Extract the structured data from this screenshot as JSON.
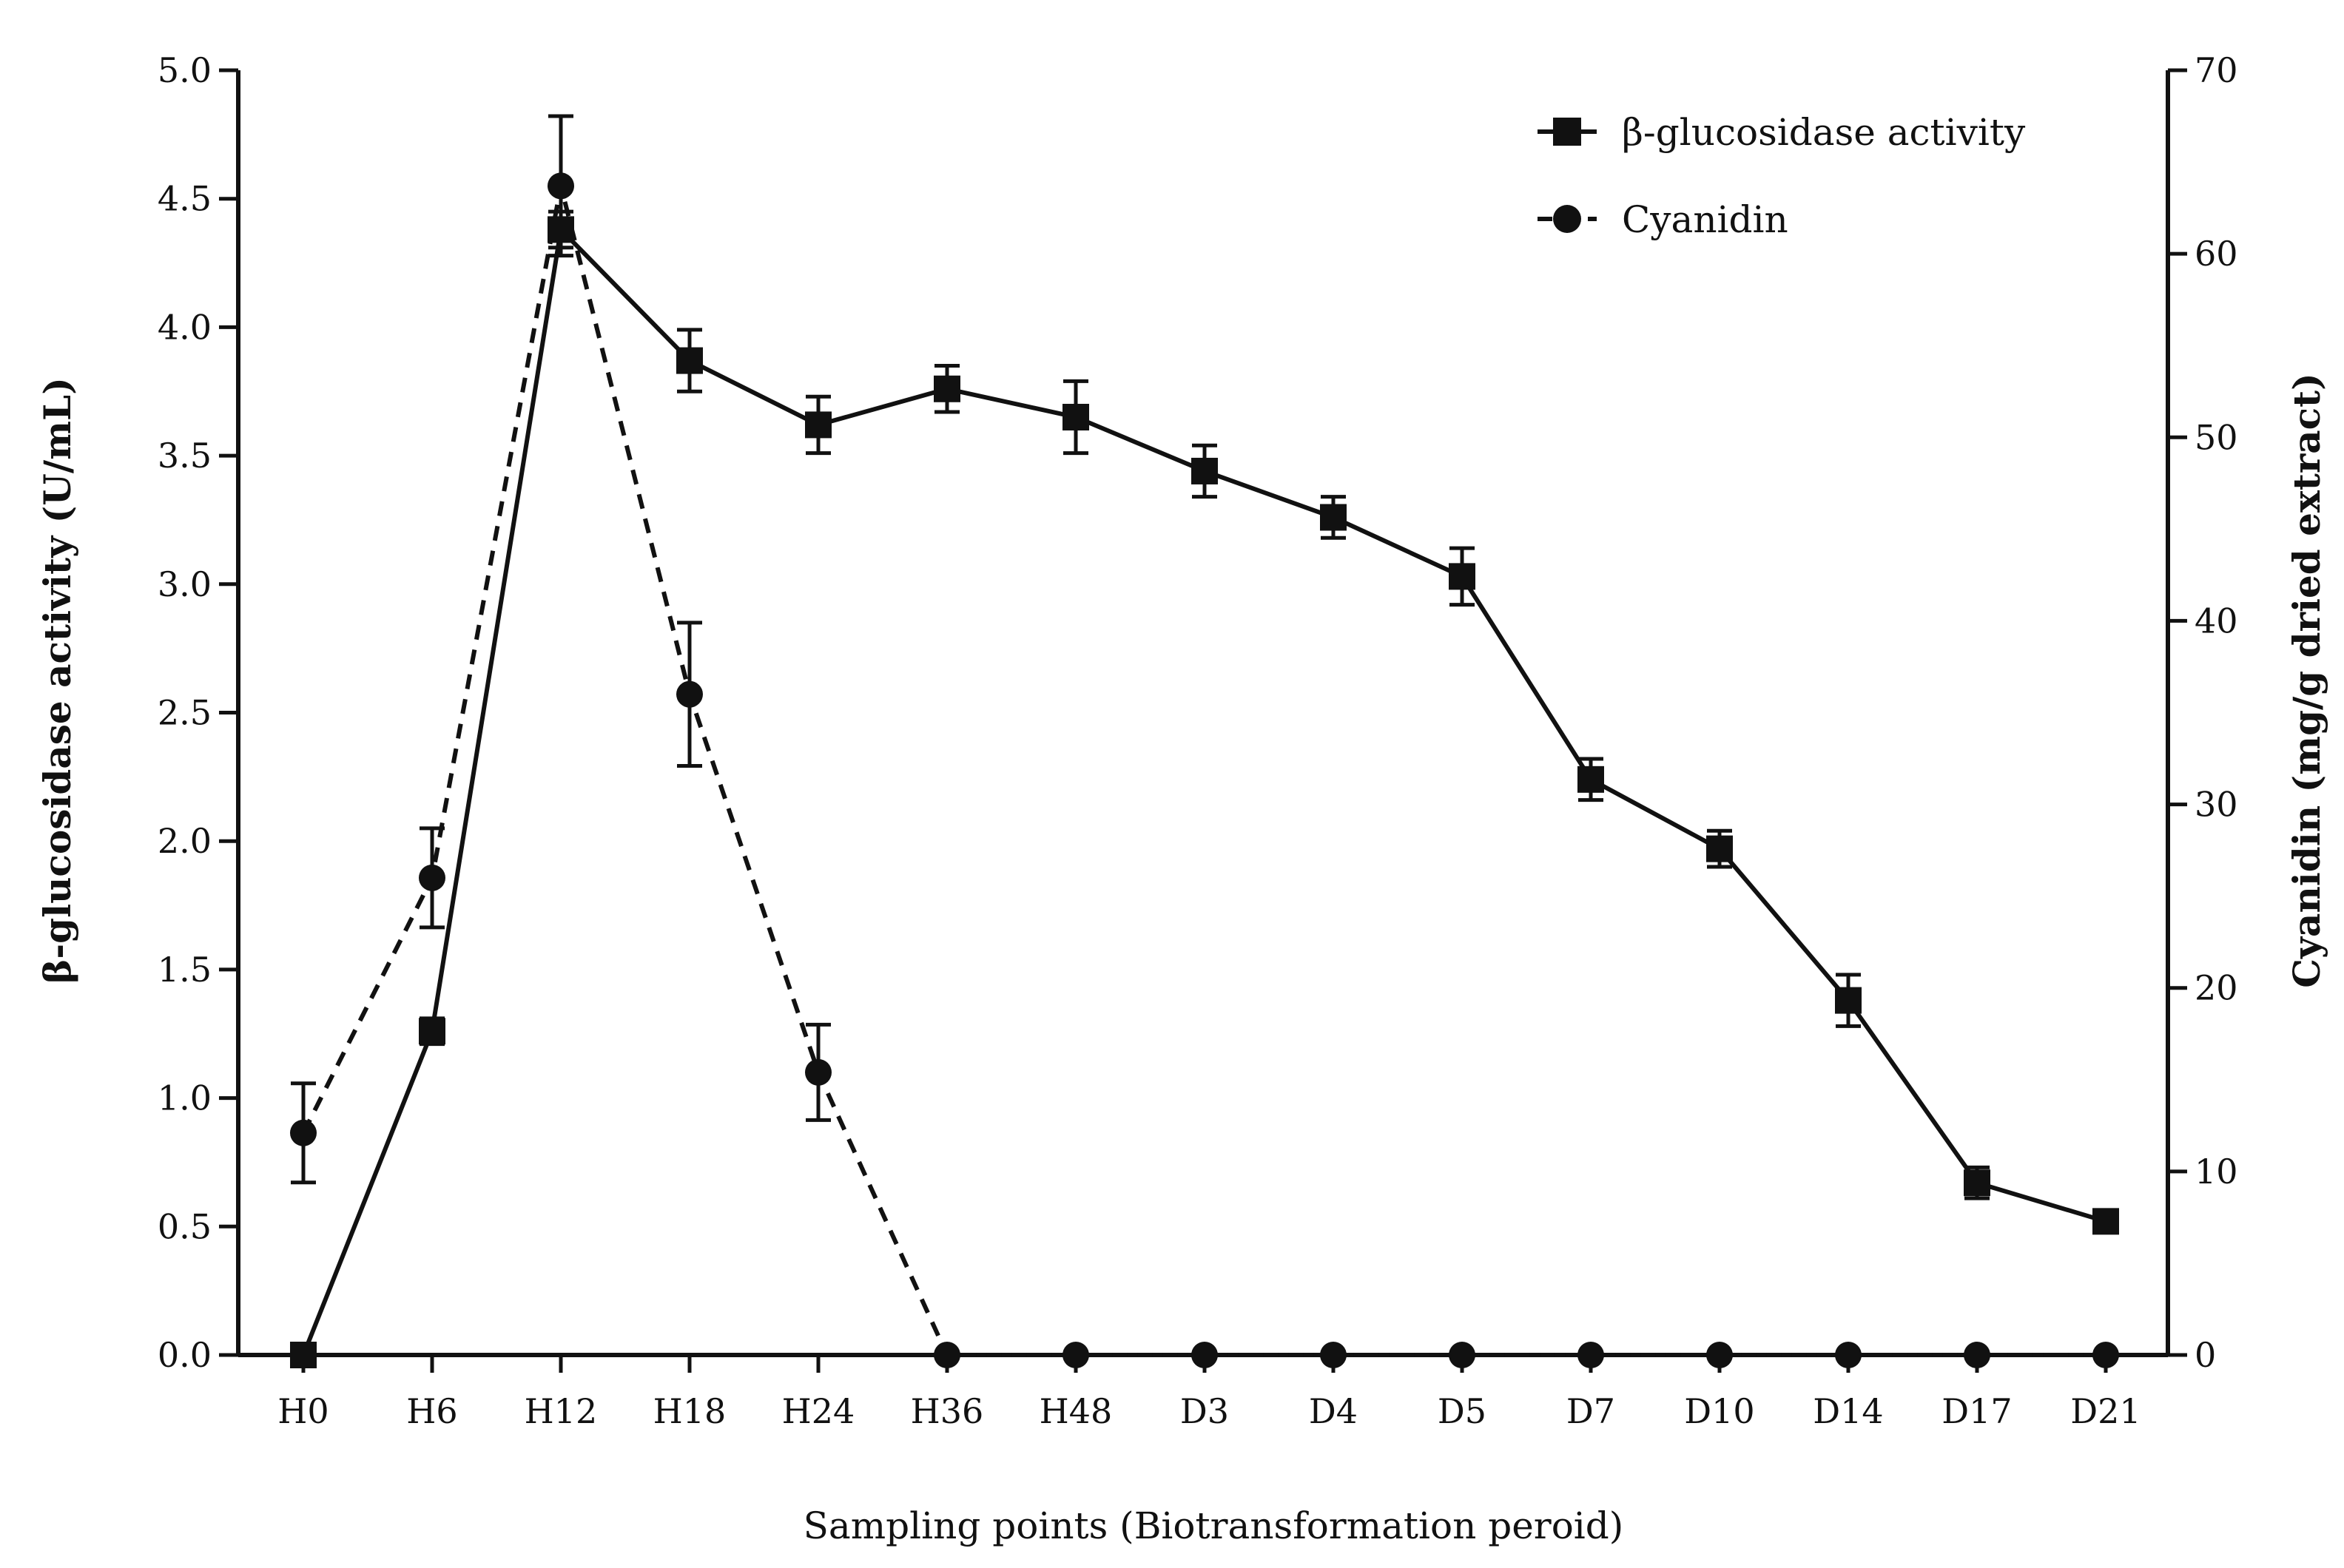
{
  "chart_data": {
    "type": "line",
    "categories": [
      "H0",
      "H6",
      "H12",
      "H18",
      "H24",
      "H36",
      "H48",
      "D3",
      "D4",
      "D5",
      "D7",
      "D10",
      "D14",
      "D17",
      "D21"
    ],
    "xlabel": "Sampling points (Biotransformation peroid)",
    "ylabel_left": "β-glucosidase activity (U/mL)",
    "ylabel_right": "Cyanidin (mg/g dried extract)",
    "ylim_left": [
      0,
      5
    ],
    "ylim_right": [
      0,
      70
    ],
    "yticks_left": [
      "0.0",
      "0.5",
      "1.0",
      "1.5",
      "2.0",
      "2.5",
      "3.0",
      "3.5",
      "4.0",
      "4.5",
      "5.0"
    ],
    "yticks_right": [
      "0",
      "10",
      "20",
      "30",
      "40",
      "50",
      "60",
      "70"
    ],
    "grid": false,
    "legend_position": "top-right",
    "series": [
      {
        "name": "β-glucosidase activity",
        "axis": "left",
        "marker": "square",
        "line_style": "solid",
        "values": [
          0.0,
          1.26,
          4.38,
          3.87,
          3.62,
          3.76,
          3.65,
          3.44,
          3.26,
          3.03,
          2.24,
          1.97,
          1.38,
          0.67,
          0.52
        ],
        "errors": [
          0.0,
          0.05,
          0.07,
          0.12,
          0.11,
          0.09,
          0.14,
          0.1,
          0.08,
          0.11,
          0.08,
          0.07,
          0.1,
          0.06,
          0.03
        ]
      },
      {
        "name": "Cyanidin",
        "axis": "right",
        "marker": "circle",
        "line_style": "dashed",
        "values": [
          12.1,
          26.0,
          63.7,
          36.0,
          15.4,
          0,
          0,
          0,
          0,
          0,
          0,
          0,
          0,
          0,
          0
        ],
        "errors": [
          2.7,
          2.7,
          3.8,
          3.9,
          2.6,
          0,
          0,
          0,
          0,
          0,
          0,
          0,
          0,
          0,
          0
        ]
      }
    ]
  },
  "colors": {
    "ink": "#111111",
    "background": "#ffffff"
  }
}
